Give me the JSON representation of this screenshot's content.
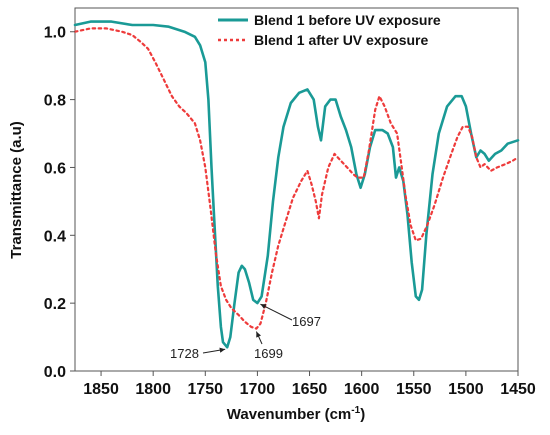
{
  "chart_data": {
    "type": "line",
    "xlabel": "Wavenumber (cm",
    "xlabel_sup": "-1",
    "xlabel_tail": ")",
    "ylabel": "Transmittance (a.u)",
    "xlim": [
      1875,
      1450
    ],
    "ylim": [
      0.0,
      1.07
    ],
    "x_reversed": true,
    "xticks": [
      1850,
      1800,
      1750,
      1700,
      1650,
      1600,
      1550,
      1500,
      1450
    ],
    "yticks": [
      0.0,
      0.2,
      0.4,
      0.6,
      0.8,
      1.0
    ],
    "ytick_labels": [
      "0.0",
      "0.2",
      "0.4",
      "0.6",
      "0.8",
      "1.0"
    ],
    "grid": false,
    "legend_position": "top-right",
    "series": [
      {
        "name": "Blend 1 before UV exposure",
        "color": "#1a9a96",
        "style": "solid",
        "points": [
          [
            1875,
            1.02
          ],
          [
            1860,
            1.03
          ],
          [
            1840,
            1.03
          ],
          [
            1820,
            1.02
          ],
          [
            1800,
            1.02
          ],
          [
            1785,
            1.015
          ],
          [
            1770,
            1.0
          ],
          [
            1760,
            0.985
          ],
          [
            1755,
            0.96
          ],
          [
            1750,
            0.91
          ],
          [
            1747,
            0.8
          ],
          [
            1744,
            0.6
          ],
          [
            1741,
            0.42
          ],
          [
            1738,
            0.25
          ],
          [
            1735,
            0.13
          ],
          [
            1733,
            0.085
          ],
          [
            1729,
            0.07
          ],
          [
            1726,
            0.1
          ],
          [
            1722,
            0.2
          ],
          [
            1718,
            0.29
          ],
          [
            1715,
            0.31
          ],
          [
            1712,
            0.3
          ],
          [
            1708,
            0.26
          ],
          [
            1704,
            0.21
          ],
          [
            1700,
            0.2
          ],
          [
            1696,
            0.22
          ],
          [
            1690,
            0.34
          ],
          [
            1685,
            0.5
          ],
          [
            1680,
            0.63
          ],
          [
            1675,
            0.72
          ],
          [
            1668,
            0.79
          ],
          [
            1660,
            0.82
          ],
          [
            1652,
            0.83
          ],
          [
            1646,
            0.8
          ],
          [
            1642,
            0.72
          ],
          [
            1639,
            0.68
          ],
          [
            1635,
            0.78
          ],
          [
            1630,
            0.8
          ],
          [
            1625,
            0.8
          ],
          [
            1620,
            0.75
          ],
          [
            1615,
            0.71
          ],
          [
            1610,
            0.66
          ],
          [
            1605,
            0.58
          ],
          [
            1601,
            0.54
          ],
          [
            1597,
            0.58
          ],
          [
            1592,
            0.66
          ],
          [
            1587,
            0.71
          ],
          [
            1580,
            0.71
          ],
          [
            1575,
            0.7
          ],
          [
            1570,
            0.66
          ],
          [
            1567,
            0.57
          ],
          [
            1564,
            0.6
          ],
          [
            1560,
            0.56
          ],
          [
            1556,
            0.46
          ],
          [
            1552,
            0.32
          ],
          [
            1548,
            0.22
          ],
          [
            1545,
            0.21
          ],
          [
            1542,
            0.24
          ],
          [
            1538,
            0.4
          ],
          [
            1532,
            0.58
          ],
          [
            1526,
            0.7
          ],
          [
            1518,
            0.78
          ],
          [
            1510,
            0.81
          ],
          [
            1504,
            0.81
          ],
          [
            1500,
            0.78
          ],
          [
            1495,
            0.7
          ],
          [
            1490,
            0.63
          ],
          [
            1486,
            0.65
          ],
          [
            1482,
            0.64
          ],
          [
            1478,
            0.62
          ],
          [
            1472,
            0.64
          ],
          [
            1466,
            0.65
          ],
          [
            1460,
            0.67
          ],
          [
            1450,
            0.68
          ]
        ]
      },
      {
        "name": "Blend 1 after UV exposure",
        "color": "#ee3b3b",
        "style": "dotted",
        "points": [
          [
            1875,
            1.0
          ],
          [
            1860,
            1.01
          ],
          [
            1845,
            1.01
          ],
          [
            1830,
            1.0
          ],
          [
            1820,
            0.99
          ],
          [
            1812,
            0.97
          ],
          [
            1805,
            0.95
          ],
          [
            1798,
            0.91
          ],
          [
            1790,
            0.86
          ],
          [
            1782,
            0.81
          ],
          [
            1775,
            0.78
          ],
          [
            1768,
            0.76
          ],
          [
            1760,
            0.73
          ],
          [
            1755,
            0.68
          ],
          [
            1750,
            0.6
          ],
          [
            1745,
            0.48
          ],
          [
            1740,
            0.35
          ],
          [
            1735,
            0.25
          ],
          [
            1730,
            0.21
          ],
          [
            1725,
            0.185
          ],
          [
            1718,
            0.165
          ],
          [
            1712,
            0.145
          ],
          [
            1706,
            0.13
          ],
          [
            1701,
            0.125
          ],
          [
            1697,
            0.14
          ],
          [
            1692,
            0.2
          ],
          [
            1686,
            0.29
          ],
          [
            1680,
            0.37
          ],
          [
            1673,
            0.44
          ],
          [
            1666,
            0.51
          ],
          [
            1658,
            0.56
          ],
          [
            1652,
            0.59
          ],
          [
            1648,
            0.55
          ],
          [
            1644,
            0.5
          ],
          [
            1641,
            0.45
          ],
          [
            1638,
            0.52
          ],
          [
            1632,
            0.6
          ],
          [
            1626,
            0.64
          ],
          [
            1620,
            0.62
          ],
          [
            1614,
            0.6
          ],
          [
            1608,
            0.58
          ],
          [
            1604,
            0.57
          ],
          [
            1598,
            0.57
          ],
          [
            1593,
            0.65
          ],
          [
            1587,
            0.77
          ],
          [
            1583,
            0.81
          ],
          [
            1578,
            0.78
          ],
          [
            1572,
            0.73
          ],
          [
            1566,
            0.7
          ],
          [
            1562,
            0.61
          ],
          [
            1558,
            0.52
          ],
          [
            1553,
            0.43
          ],
          [
            1548,
            0.385
          ],
          [
            1543,
            0.39
          ],
          [
            1537,
            0.43
          ],
          [
            1530,
            0.49
          ],
          [
            1522,
            0.57
          ],
          [
            1514,
            0.64
          ],
          [
            1508,
            0.69
          ],
          [
            1503,
            0.72
          ],
          [
            1498,
            0.72
          ],
          [
            1494,
            0.69
          ],
          [
            1490,
            0.63
          ],
          [
            1486,
            0.6
          ],
          [
            1482,
            0.61
          ],
          [
            1476,
            0.59
          ],
          [
            1470,
            0.6
          ],
          [
            1462,
            0.61
          ],
          [
            1455,
            0.62
          ],
          [
            1450,
            0.63
          ]
        ]
      }
    ],
    "annotations": [
      {
        "text": "1728",
        "point": [
          1729,
          0.07
        ]
      },
      {
        "text": "1699",
        "point": [
          1700,
          0.125
        ]
      },
      {
        "text": "1697",
        "point": [
          1700,
          0.2
        ]
      }
    ]
  }
}
